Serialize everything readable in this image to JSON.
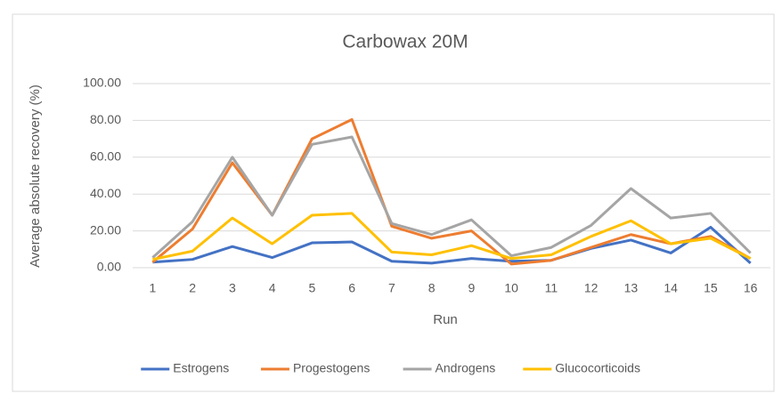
{
  "chart_data": {
    "type": "line",
    "title": "Carbowax 20M",
    "x_label": "Run",
    "y_label": "Average absolute recovery (%)",
    "categories": [
      "1",
      "2",
      "3",
      "4",
      "5",
      "6",
      "7",
      "8",
      "9",
      "10",
      "11",
      "12",
      "13",
      "14",
      "15",
      "16"
    ],
    "series": [
      {
        "name": "Estrogens",
        "color": "#4472c4",
        "values": [
          3,
          4.5,
          11.5,
          5.5,
          13.5,
          14,
          3.5,
          2.5,
          5,
          3.5,
          4,
          10.5,
          15,
          8,
          22,
          2.5
        ]
      },
      {
        "name": "Progestogens",
        "color": "#ed7d31",
        "values": [
          3,
          21,
          57,
          28.5,
          70,
          80.5,
          22.5,
          16,
          20,
          2,
          4,
          11,
          18,
          13,
          17,
          5
        ]
      },
      {
        "name": "Androgens",
        "color": "#a5a5a5",
        "values": [
          5.5,
          25,
          60,
          28.5,
          67,
          71,
          24,
          18,
          26,
          6.5,
          11,
          23,
          43,
          27,
          29.5,
          8
        ]
      },
      {
        "name": "Glucocorticoids",
        "color": "#ffc000",
        "values": [
          4.5,
          9,
          27,
          13,
          28.5,
          29.5,
          8.5,
          7,
          12,
          5,
          7,
          17,
          25.5,
          13,
          16,
          5
        ]
      }
    ],
    "ylim": [
      0,
      100
    ],
    "yticks": [
      {
        "value": 0,
        "label": "0.00"
      },
      {
        "value": 20,
        "label": "20.00"
      },
      {
        "value": 40,
        "label": "40.00"
      },
      {
        "value": 60,
        "label": "60.00"
      },
      {
        "value": 80,
        "label": "80.00"
      },
      {
        "value": 100,
        "label": "100.00"
      }
    ],
    "grid": true,
    "legend": "bottom"
  }
}
